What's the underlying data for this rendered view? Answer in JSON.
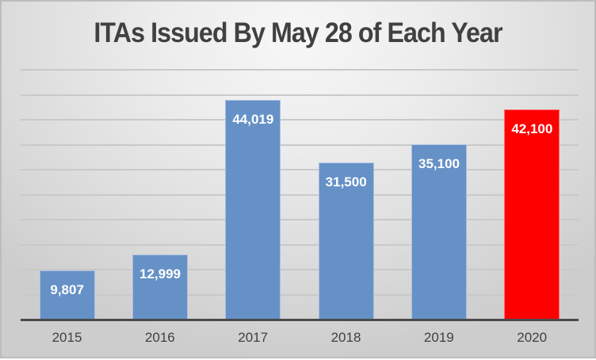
{
  "chart_data": {
    "type": "bar",
    "title": "ITAs Issued By May 28 of Each Year",
    "categories": [
      "2015",
      "2016",
      "2017",
      "2018",
      "2019",
      "2020"
    ],
    "values": [
      9807,
      12999,
      44019,
      31500,
      35100,
      42100
    ],
    "value_labels": [
      "9,807",
      "12,999",
      "44,019",
      "31,500",
      "35,100",
      "42,100"
    ],
    "bar_colors": [
      "#6591c7",
      "#6591c7",
      "#6591c7",
      "#6591c7",
      "#6591c7",
      "#ff0000"
    ],
    "xlabel": "",
    "ylabel": "",
    "ylim": [
      0,
      50000
    ],
    "grid": true,
    "gridline_step": 5000,
    "y_tick_labels_visible": false,
    "legend": "none"
  }
}
